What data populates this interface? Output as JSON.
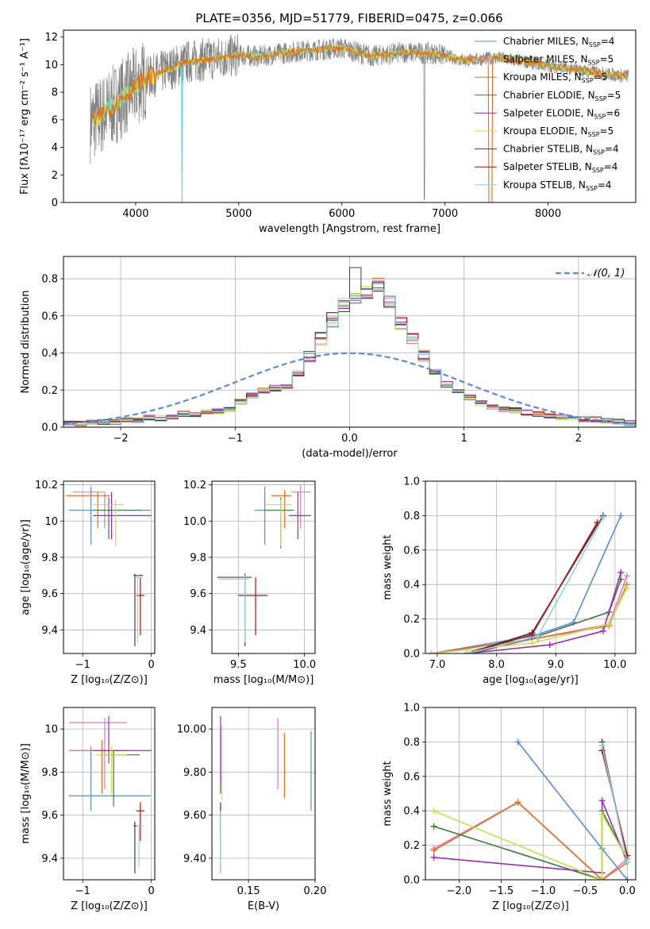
{
  "figure": {
    "title": "PLATE=0356, MJD=51779, FIBERID=0475, z=0.066"
  },
  "colors": {
    "series": [
      "#5b8bd6",
      "#e377c2",
      "#e07020",
      "#3a7a3a",
      "#9b2bbd",
      "#c7e04a",
      "#404040",
      "#b01010",
      "#8fd3e0"
    ],
    "data": "#808080",
    "model_cyan": "#6ad1d8",
    "normal": "#5b8bd6",
    "grid": "#b0b0b0"
  },
  "chart_data": [
    {
      "id": "spectrum",
      "type": "line",
      "xlabel": "wavelength [Angstrom, rest frame]",
      "ylabel": "Flux [fλ10⁻¹⁷ erg cm⁻² s⁻¹ A⁻¹]",
      "xlim": [
        3300,
        8850
      ],
      "ylim": [
        0,
        12.5
      ],
      "xticks": [
        4000,
        5000,
        6000,
        7000,
        8000
      ],
      "yticks": [
        0,
        2,
        4,
        6,
        8,
        10,
        12
      ],
      "legend_loc": "upper right",
      "legend": [
        {
          "label": "Chabrier MILES, N",
          "sub": "SSP",
          "tail": "=4"
        },
        {
          "label": "Salpeter MILES, N",
          "sub": "SSP",
          "tail": "=5"
        },
        {
          "label": "Kroupa MILES, N",
          "sub": "SSP",
          "tail": "=5"
        },
        {
          "label": "Chabrier ELODIE, N",
          "sub": "SSP",
          "tail": "=5"
        },
        {
          "label": "Salpeter ELODIE, N",
          "sub": "SSP",
          "tail": "=6"
        },
        {
          "label": "Kroupa ELODIE, N",
          "sub": "SSP",
          "tail": "=5"
        },
        {
          "label": "Chabrier STELIB, N",
          "sub": "SSP",
          "tail": "=4"
        },
        {
          "label": "Salpeter STELIB, N",
          "sub": "SSP",
          "tail": "=4"
        },
        {
          "label": "Kroupa STELIB, N",
          "sub": "SSP",
          "tail": "=4"
        }
      ],
      "continuum": {
        "x": [
          3560,
          3700,
          3900,
          4100,
          4300,
          4500,
          4800,
          5000,
          5200,
          5500,
          5800,
          6000,
          6300,
          6600,
          6900,
          7200,
          7500,
          7800,
          8100,
          8400,
          8700
        ],
        "y": [
          5.8,
          6.5,
          7.8,
          9.0,
          9.6,
          10.2,
          10.5,
          10.7,
          10.6,
          10.9,
          11.1,
          11.2,
          10.6,
          10.9,
          10.8,
          10.3,
          10.5,
          10.2,
          9.8,
          9.5,
          9.2
        ]
      }
    },
    {
      "id": "residuals",
      "type": "histogram",
      "xlabel": "(data-model)/error",
      "ylabel": "Normed distribution",
      "xlim": [
        -2.5,
        2.5
      ],
      "ylim": [
        0,
        0.92
      ],
      "xticks": [
        -2,
        -1,
        0,
        1,
        2
      ],
      "yticks": [
        0.0,
        0.2,
        0.4,
        0.6,
        0.8
      ],
      "legend": "𝒩(0, 1)",
      "bin_width": 0.1,
      "bin_start": -2.5,
      "values": [
        0.02,
        0.02,
        0.03,
        0.03,
        0.03,
        0.04,
        0.04,
        0.05,
        0.05,
        0.06,
        0.07,
        0.07,
        0.08,
        0.09,
        0.1,
        0.14,
        0.17,
        0.2,
        0.21,
        0.22,
        0.29,
        0.38,
        0.48,
        0.58,
        0.66,
        0.7,
        0.73,
        0.77,
        0.67,
        0.56,
        0.47,
        0.38,
        0.3,
        0.23,
        0.2,
        0.16,
        0.13,
        0.11,
        0.1,
        0.09,
        0.08,
        0.07,
        0.06,
        0.05,
        0.05,
        0.04,
        0.04,
        0.03,
        0.03,
        0.02
      ],
      "normal_curve": "gaussian(0,1)"
    },
    {
      "id": "age_vs_Z",
      "type": "errorbar",
      "xlabel": "Z [log₁₀(Z/Z⊙)]",
      "ylabel": "age  [log₁₀(age/yr)]",
      "xlim": [
        -1.28,
        0.05
      ],
      "ylim": [
        9.27,
        10.22
      ],
      "xticks": [
        -1,
        0
      ],
      "yticks": [
        9.4,
        9.6,
        9.8,
        10.0,
        10.2
      ],
      "points": [
        {
          "x": -0.88,
          "y": 10.06,
          "xe": [
            -1.2,
            -0.01
          ],
          "ye": [
            9.87,
            10.19
          ]
        },
        {
          "x": -0.68,
          "y": 10.16,
          "xe": [
            -1.15,
            -0.68
          ],
          "ye": [
            9.96,
            10.16
          ]
        },
        {
          "x": -0.78,
          "y": 10.14,
          "xe": [
            -1.25,
            -0.6
          ],
          "ye": [
            9.96,
            10.16
          ]
        },
        {
          "x": -0.62,
          "y": 10.06,
          "xe": [
            -0.85,
            -0.15
          ],
          "ye": [
            9.9,
            10.13
          ]
        },
        {
          "x": -0.58,
          "y": 10.03,
          "xe": [
            -0.85,
            0.0
          ],
          "ye": [
            9.9,
            10.16
          ]
        },
        {
          "x": -0.52,
          "y": 10.09,
          "xe": [
            -0.9,
            -0.4
          ],
          "ye": [
            9.86,
            10.12
          ]
        },
        {
          "x": -0.24,
          "y": 9.7,
          "xe": [
            -0.26,
            -0.12
          ],
          "ye": [
            9.31,
            9.71
          ]
        },
        {
          "x": -0.16,
          "y": 9.59,
          "xe": [
            -0.22,
            -0.1
          ],
          "ye": [
            9.37,
            9.69
          ]
        },
        {
          "x": -0.2,
          "y": 9.69,
          "xe": [
            -0.24,
            -0.12
          ],
          "ye": [
            9.33,
            9.7
          ]
        }
      ]
    },
    {
      "id": "age_vs_mass",
      "type": "errorbar",
      "xlabel": "mass [log₁₀(M/M⊙)]",
      "ylabel": "",
      "xlim": [
        9.3,
        10.08
      ],
      "ylim": [
        9.27,
        10.22
      ],
      "xticks": [
        9.5,
        10.0
      ],
      "yticks": [
        9.4,
        9.6,
        9.8,
        10.0,
        10.2
      ],
      "points": [
        {
          "x": 9.7,
          "y": 10.06,
          "xe": [
            9.62,
            9.9
          ],
          "ye": [
            9.87,
            10.19
          ]
        },
        {
          "x": 9.97,
          "y": 10.16,
          "xe": [
            9.9,
            10.05
          ],
          "ye": [
            9.96,
            10.2
          ]
        },
        {
          "x": 9.85,
          "y": 10.14,
          "xe": [
            9.75,
            9.9
          ],
          "ye": [
            9.96,
            10.17
          ]
        },
        {
          "x": 9.82,
          "y": 10.06,
          "xe": [
            9.7,
            9.92
          ],
          "ye": [
            9.85,
            10.13
          ]
        },
        {
          "x": 9.95,
          "y": 10.03,
          "xe": [
            9.88,
            10.05
          ],
          "ye": [
            9.9,
            10.16
          ]
        },
        {
          "x": 9.82,
          "y": 10.09,
          "xe": [
            9.7,
            9.9
          ],
          "ye": [
            9.86,
            10.12
          ]
        },
        {
          "x": 9.55,
          "y": 9.69,
          "xe": [
            9.34,
            9.6
          ],
          "ye": [
            9.31,
            9.71
          ]
        },
        {
          "x": 9.63,
          "y": 9.59,
          "xe": [
            9.5,
            9.72
          ],
          "ye": [
            9.37,
            9.69
          ]
        },
        {
          "x": 9.55,
          "y": 9.68,
          "xe": [
            9.35,
            9.58
          ],
          "ye": [
            9.33,
            9.7
          ]
        }
      ]
    },
    {
      "id": "weight_vs_age",
      "type": "line",
      "xlabel": "age  [log₁₀(age/yr)]",
      "ylabel": "mass weight",
      "xlim": [
        6.8,
        10.35
      ],
      "ylim": [
        0,
        1.0
      ],
      "xticks": [
        7,
        8,
        9,
        10
      ],
      "yticks": [
        0.0,
        0.2,
        0.4,
        0.6,
        0.8,
        1.0
      ],
      "series": [
        {
          "x": [
            6.9,
            8.6,
            9.3,
            10.1
          ],
          "y": [
            0.0,
            0.1,
            0.18,
            0.8
          ]
        },
        {
          "x": [
            7.5,
            8.7,
            9.9,
            10.2
          ],
          "y": [
            0.0,
            0.09,
            0.17,
            0.45
          ]
        },
        {
          "x": [
            6.9,
            8.7,
            9.9,
            10.2
          ],
          "y": [
            0.0,
            0.09,
            0.16,
            0.4
          ]
        },
        {
          "x": [
            7.6,
            8.6,
            9.9,
            10.1
          ],
          "y": [
            0.0,
            0.09,
            0.24,
            0.43
          ]
        },
        {
          "x": [
            7.5,
            8.9,
            9.8,
            10.1
          ],
          "y": [
            0.0,
            0.05,
            0.13,
            0.47
          ]
        },
        {
          "x": [
            6.9,
            8.6,
            9.9,
            10.2
          ],
          "y": [
            0.0,
            0.06,
            0.17,
            0.38
          ]
        },
        {
          "x": [
            7.5,
            8.6,
            9.8
          ],
          "y": [
            0.0,
            0.12,
            0.8
          ]
        },
        {
          "x": [
            7.5,
            8.6,
            9.7
          ],
          "y": [
            0.0,
            0.11,
            0.76
          ]
        },
        {
          "x": [
            7.5,
            8.7,
            9.8
          ],
          "y": [
            0.0,
            0.1,
            0.79
          ]
        }
      ]
    },
    {
      "id": "mass_vs_Z",
      "type": "errorbar",
      "xlabel": "Z [log₁₀(Z/Z⊙)]",
      "ylabel": "mass [log₁₀(M/M⊙)]",
      "xlim": [
        -1.28,
        0.05
      ],
      "ylim": [
        9.3,
        10.1
      ],
      "xticks": [
        -1,
        0
      ],
      "yticks": [
        9.4,
        9.6,
        9.8,
        10.0
      ],
      "points": [
        {
          "x": -0.88,
          "y": 9.69,
          "xe": [
            -1.2,
            -0.01
          ],
          "ye": [
            9.62,
            9.92
          ]
        },
        {
          "x": -0.68,
          "y": 10.03,
          "xe": [
            -1.2,
            -0.35
          ],
          "ye": [
            9.72,
            10.05
          ]
        },
        {
          "x": -0.72,
          "y": 9.9,
          "xe": [
            -1.2,
            -0.35
          ],
          "ye": [
            9.7,
            9.95
          ]
        },
        {
          "x": -0.55,
          "y": 9.88,
          "xe": [
            -0.75,
            -0.17
          ],
          "ye": [
            9.64,
            9.9
          ]
        },
        {
          "x": -0.62,
          "y": 9.9,
          "xe": [
            -0.85,
            0.0
          ],
          "ye": [
            9.84,
            10.06
          ]
        },
        {
          "x": -0.58,
          "y": 9.88,
          "xe": [
            -0.8,
            -0.35
          ],
          "ye": [
            9.7,
            9.92
          ]
        },
        {
          "x": -0.24,
          "y": 9.55,
          "xe": [
            -0.26,
            -0.2
          ],
          "ye": [
            9.33,
            9.57
          ]
        },
        {
          "x": -0.16,
          "y": 9.62,
          "xe": [
            -0.22,
            -0.1
          ],
          "ye": [
            9.48,
            9.66
          ]
        },
        {
          "x": -0.18,
          "y": 9.55,
          "xe": [
            -0.22,
            -0.12
          ],
          "ye": [
            9.36,
            9.56
          ]
        }
      ]
    },
    {
      "id": "mass_vs_EBV",
      "type": "errorbar",
      "xlabel": "E(B-V)",
      "ylabel": "",
      "xlim": [
        0.1225,
        0.2
      ],
      "ylim": [
        9.3,
        10.1
      ],
      "xticks": [
        0.15,
        0.2
      ],
      "yticks": [
        9.4,
        9.6,
        9.8,
        10.0
      ],
      "points": [
        {
          "x": 0.197,
          "y": 9.8,
          "ye": [
            9.62,
            9.99
          ]
        },
        {
          "x": 0.172,
          "y": 9.89,
          "ye": [
            9.72,
            10.05
          ]
        },
        {
          "x": 0.177,
          "y": 9.8,
          "ye": [
            9.68,
            9.98
          ]
        },
        {
          "x": 0.129,
          "y": 9.85,
          "ye": [
            9.7,
            10.0
          ]
        },
        {
          "x": 0.129,
          "y": 9.9,
          "ye": [
            9.75,
            10.06
          ]
        },
        {
          "x": 0.13,
          "y": 9.85,
          "ye": [
            9.67,
            10.02
          ]
        },
        {
          "x": 0.129,
          "y": 9.55,
          "ye": [
            9.33,
            9.64
          ]
        },
        {
          "x": 0.129,
          "y": 9.6,
          "ye": [
            9.5,
            9.66
          ]
        },
        {
          "x": 0.129,
          "y": 9.5,
          "ye": [
            9.33,
            9.62
          ]
        }
      ]
    },
    {
      "id": "weight_vs_Z",
      "type": "line",
      "xlabel": "Z [log₁₀(Z/Z⊙)]",
      "ylabel": "mass weight",
      "xlim": [
        -2.4,
        0.1
      ],
      "ylim": [
        0,
        1.0
      ],
      "xticks": [
        -2.0,
        -1.5,
        -1.0,
        -0.5,
        0.0
      ],
      "yticks": [
        0.0,
        0.2,
        0.4,
        0.6,
        0.8,
        1.0
      ],
      "series": [
        {
          "x": [
            -1.3,
            -0.3,
            0.0
          ],
          "y": [
            0.8,
            0.18,
            0.0
          ]
        },
        {
          "x": [
            -2.3,
            -1.3,
            -0.3,
            0.0
          ],
          "y": [
            0.18,
            0.45,
            0.0,
            0.12
          ]
        },
        {
          "x": [
            -2.3,
            -1.3,
            -0.3,
            0.0
          ],
          "y": [
            0.17,
            0.45,
            0.0,
            0.1
          ]
        },
        {
          "x": [
            -2.3,
            -0.3,
            -0.3,
            0.0
          ],
          "y": [
            0.31,
            0.0,
            0.4,
            0.12
          ]
        },
        {
          "x": [
            -2.3,
            -0.3,
            -0.3,
            0.0
          ],
          "y": [
            0.13,
            0.04,
            0.46,
            0.1
          ]
        },
        {
          "x": [
            -2.3,
            -0.3,
            -0.3,
            0.0
          ],
          "y": [
            0.4,
            0.0,
            0.38,
            0.12
          ]
        },
        {
          "x": [
            -0.3,
            0.0
          ],
          "y": [
            0.8,
            0.1
          ]
        },
        {
          "x": [
            -0.3,
            0.0
          ],
          "y": [
            0.75,
            0.14
          ]
        },
        {
          "x": [
            -0.3,
            0.0
          ],
          "y": [
            0.78,
            0.1
          ]
        }
      ]
    }
  ]
}
